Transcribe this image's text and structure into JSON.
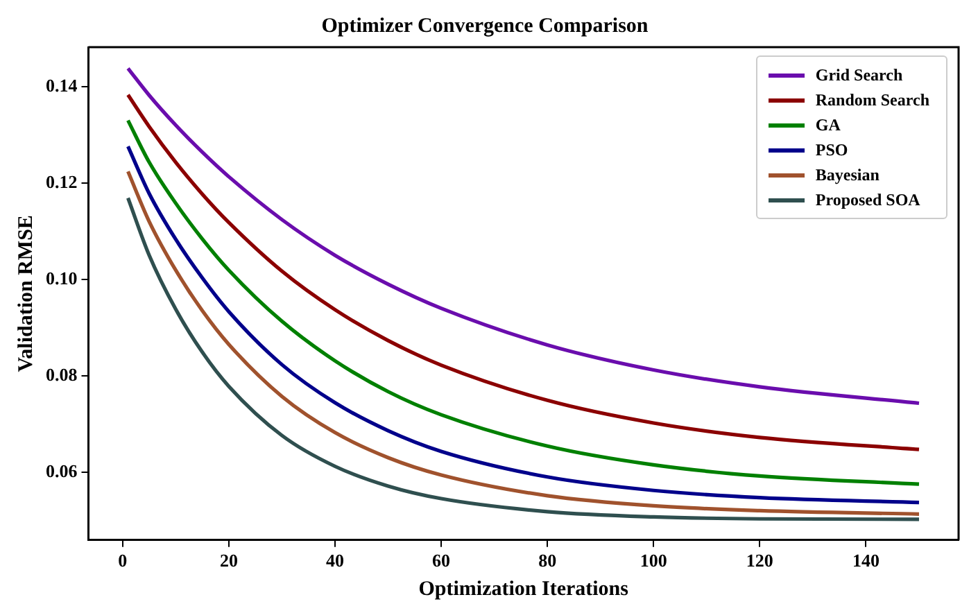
{
  "chart_data": {
    "type": "line",
    "title": "Optimizer Convergence Comparison",
    "xlabel": "Optimization Iterations",
    "ylabel": "Validation RMSE",
    "x": [
      1,
      5,
      10,
      15,
      20,
      30,
      40,
      50,
      60,
      80,
      100,
      120,
      150
    ],
    "series": [
      {
        "name": "Grid Search",
        "color": "#6a0dad",
        "values": [
          0.1438,
          0.1382,
          0.132,
          0.1264,
          0.1213,
          0.1124,
          0.105,
          0.099,
          0.094,
          0.0864,
          0.0812,
          0.0777,
          0.0743
        ]
      },
      {
        "name": "Random Search",
        "color": "#8b0000",
        "values": [
          0.1383,
          0.1317,
          0.1243,
          0.1177,
          0.1118,
          0.1017,
          0.0937,
          0.0873,
          0.0822,
          0.0749,
          0.0702,
          0.0672,
          0.0647
        ]
      },
      {
        "name": "GA",
        "color": "#008000",
        "values": [
          0.133,
          0.1243,
          0.1158,
          0.1084,
          0.1019,
          0.0913,
          0.0831,
          0.0767,
          0.0719,
          0.0654,
          0.0615,
          0.0592,
          0.0575
        ]
      },
      {
        "name": "PSO",
        "color": "#00008b",
        "values": [
          0.1276,
          0.1178,
          0.1083,
          0.1003,
          0.0933,
          0.0823,
          0.0744,
          0.0686,
          0.0643,
          0.059,
          0.0562,
          0.0547,
          0.0537
        ]
      },
      {
        "name": "Bayesian",
        "color": "#a0522d",
        "values": [
          0.1224,
          0.112,
          0.1019,
          0.0935,
          0.0865,
          0.0757,
          0.0682,
          0.063,
          0.0594,
          0.0551,
          0.053,
          0.052,
          0.0513
        ]
      },
      {
        "name": "Proposed SOA",
        "color": "#2f4f4f",
        "values": [
          0.1169,
          0.105,
          0.0938,
          0.0849,
          0.0778,
          0.0676,
          0.0612,
          0.0571,
          0.0545,
          0.0518,
          0.0507,
          0.0503,
          0.0502
        ]
      }
    ],
    "xlim": [
      -6.45,
      157.45
    ],
    "xticks": [
      0,
      20,
      40,
      60,
      80,
      100,
      120,
      140
    ],
    "ylim": [
      0.0459,
      0.1482
    ],
    "yticks": [
      0.06,
      0.08,
      {
        "value": 0.1,
        "label": "0.10"
      },
      0.12,
      0.14
    ],
    "grid": false,
    "legend": "top right",
    "marker": "none",
    "line_style": "solid"
  }
}
